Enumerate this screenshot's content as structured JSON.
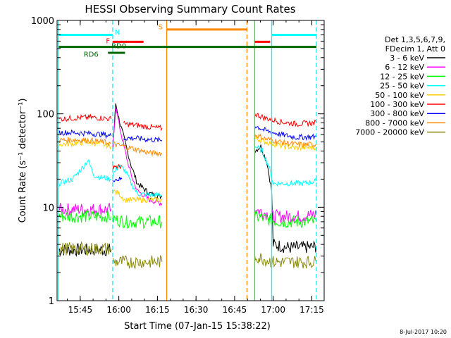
{
  "chart_data": {
    "type": "line",
    "title": "HESSI Observing Summary Count Rates",
    "xlabel": "Start Time (07-Jan-15 15:38:22)",
    "ylabel": "Count Rate (s⁻¹ detector⁻¹)",
    "ylog": true,
    "xlim_min": [
      15.6,
      17.33
    ],
    "ylim": [
      1,
      1000
    ],
    "xticks": [
      {
        "t": 15.75,
        "label": "15:45"
      },
      {
        "t": 16.0,
        "label": "16:00"
      },
      {
        "t": 16.25,
        "label": "16:15"
      },
      {
        "t": 16.5,
        "label": "16:30"
      },
      {
        "t": 16.75,
        "label": "16:45"
      },
      {
        "t": 17.0,
        "label": "17:00"
      },
      {
        "t": 17.25,
        "label": "17:15"
      }
    ],
    "yticks": [
      {
        "v": 1,
        "label": "1"
      },
      {
        "v": 10,
        "label": "10"
      },
      {
        "v": 100,
        "label": "100"
      },
      {
        "v": 1000,
        "label": "1000"
      }
    ],
    "legend": {
      "header": [
        "Det 1,3,5,6,7,9,",
        "FDecim 1, Att 0"
      ],
      "placement": "right"
    },
    "series": [
      {
        "name": "3 - 6 keV",
        "color": "#000000",
        "segments": [
          [
            [
              15.61,
              3.5
            ],
            [
              15.95,
              3.5
            ]
          ],
          [
            [
              15.96,
              40
            ],
            [
              15.98,
              130
            ],
            [
              16.0,
              90
            ],
            [
              16.04,
              50
            ],
            [
              16.08,
              28
            ],
            [
              16.12,
              18
            ],
            [
              16.2,
              14
            ],
            [
              16.28,
              13
            ]
          ],
          [
            [
              16.88,
              40
            ],
            [
              16.92,
              45
            ],
            [
              16.96,
              30
            ],
            [
              16.99,
              15
            ],
            [
              17.0,
              4
            ],
            [
              17.1,
              3.7
            ],
            [
              17.2,
              3.7
            ],
            [
              17.28,
              3.8
            ]
          ]
        ]
      },
      {
        "name": "6 - 12 keV",
        "color": "#ff00ff",
        "segments": [
          [
            [
              15.61,
              9.5
            ],
            [
              15.95,
              9.5
            ]
          ],
          [
            [
              15.96,
              40
            ],
            [
              15.98,
              120
            ],
            [
              16.0,
              80
            ],
            [
              16.04,
              40
            ],
            [
              16.08,
              22
            ],
            [
              16.12,
              15
            ],
            [
              16.2,
              12
            ],
            [
              16.28,
              11
            ]
          ],
          [
            [
              16.88,
              9.5
            ],
            [
              16.92,
              9
            ],
            [
              16.96,
              8.5
            ],
            [
              16.99,
              8
            ],
            [
              17.0,
              8
            ],
            [
              17.2,
              8
            ],
            [
              17.28,
              8.5
            ]
          ]
        ]
      },
      {
        "name": "12 - 25 keV",
        "color": "#00ff00",
        "segments": [
          [
            [
              15.61,
              8
            ],
            [
              15.95,
              8
            ]
          ],
          [
            [
              15.96,
              7.5
            ],
            [
              16.05,
              7
            ],
            [
              16.15,
              7
            ],
            [
              16.28,
              7
            ]
          ],
          [
            [
              16.88,
              8
            ],
            [
              16.95,
              7.5
            ],
            [
              17.05,
              7
            ],
            [
              17.15,
              7
            ],
            [
              17.28,
              7
            ]
          ]
        ]
      },
      {
        "name": "25 - 50 keV",
        "color": "#00ffff",
        "segments": [
          [
            [
              15.61,
              18
            ],
            [
              15.7,
              20
            ],
            [
              15.76,
              26
            ],
            [
              15.8,
              32
            ],
            [
              15.84,
              22
            ],
            [
              15.88,
              21
            ],
            [
              15.95,
              20
            ]
          ],
          [
            [
              15.96,
              22
            ],
            [
              16.0,
              28
            ],
            [
              16.04,
              25
            ],
            [
              16.08,
              18
            ],
            [
              16.12,
              14
            ],
            [
              16.2,
              13.5
            ],
            [
              16.28,
              13.5
            ]
          ],
          [
            [
              16.88,
              45
            ],
            [
              16.93,
              40
            ],
            [
              16.97,
              28
            ],
            [
              17.0,
              18
            ],
            [
              17.1,
              18
            ],
            [
              17.2,
              18
            ],
            [
              17.28,
              19
            ]
          ]
        ]
      },
      {
        "name": "50 - 100 keV",
        "color": "#ffcc00",
        "segments": [
          [
            [
              15.61,
              47
            ],
            [
              15.7,
              48
            ],
            [
              15.8,
              50
            ],
            [
              15.9,
              47
            ],
            [
              15.95,
              45
            ]
          ],
          [
            [
              15.96,
              15
            ],
            [
              16.0,
              14
            ],
            [
              16.04,
              12
            ],
            [
              16.08,
              12
            ],
            [
              16.12,
              12
            ],
            [
              16.2,
              12
            ],
            [
              16.28,
              12
            ]
          ],
          [
            [
              16.88,
              55
            ],
            [
              16.95,
              50
            ],
            [
              17.05,
              46
            ],
            [
              17.15,
              43
            ],
            [
              17.28,
              44
            ]
          ]
        ]
      },
      {
        "name": "100 - 300 keV",
        "color": "#ff0000",
        "segments": [
          [
            [
              15.61,
              88
            ],
            [
              15.7,
              90
            ],
            [
              15.8,
              92
            ],
            [
              15.9,
              90
            ],
            [
              15.95,
              88
            ]
          ],
          [
            [
              15.96,
              28
            ],
            [
              16.0,
              27
            ],
            [
              16.02,
              28
            ]
          ],
          [
            [
              16.03,
              78
            ],
            [
              16.1,
              76
            ],
            [
              16.2,
              72
            ],
            [
              16.28,
              70
            ]
          ],
          [
            [
              16.88,
              100
            ],
            [
              16.95,
              90
            ],
            [
              17.05,
              82
            ],
            [
              17.15,
              78
            ],
            [
              17.28,
              80
            ]
          ]
        ]
      },
      {
        "name": "300 - 800 keV",
        "color": "#0000ff",
        "segments": [
          [
            [
              15.61,
              63
            ],
            [
              15.7,
              63
            ],
            [
              15.8,
              62
            ],
            [
              15.9,
              60
            ],
            [
              15.95,
              58
            ]
          ],
          [
            [
              15.96,
              20
            ],
            [
              16.0,
              20
            ],
            [
              16.02,
              20
            ]
          ],
          [
            [
              16.03,
              55
            ],
            [
              16.1,
              55
            ],
            [
              16.2,
              53
            ],
            [
              16.28,
              52
            ]
          ],
          [
            [
              16.88,
              75
            ],
            [
              16.95,
              66
            ],
            [
              17.05,
              60
            ],
            [
              17.15,
              56
            ],
            [
              17.28,
              57
            ]
          ]
        ]
      },
      {
        "name": "800 - 7000 keV",
        "color": "#ff8800",
        "segments": [
          [
            [
              15.61,
              52
            ],
            [
              15.7,
              53
            ],
            [
              15.8,
              52
            ],
            [
              15.9,
              50
            ],
            [
              15.95,
              48
            ]
          ],
          [
            [
              15.96,
              48
            ],
            [
              16.0,
              46
            ],
            [
              16.08,
              43
            ],
            [
              16.15,
              40
            ],
            [
              16.2,
              38
            ],
            [
              16.28,
              38
            ]
          ],
          [
            [
              16.88,
              60
            ],
            [
              16.95,
              54
            ],
            [
              17.05,
              50
            ],
            [
              17.15,
              47
            ],
            [
              17.28,
              47
            ]
          ]
        ]
      },
      {
        "name": "7000 - 20000 keV",
        "color": "#888800",
        "segments": [
          [
            [
              15.61,
              3.6
            ],
            [
              15.95,
              3.6
            ]
          ],
          [
            [
              15.96,
              2.6
            ],
            [
              16.1,
              2.6
            ],
            [
              16.28,
              2.6
            ]
          ],
          [
            [
              16.88,
              3
            ],
            [
              17.0,
              2.6
            ],
            [
              17.15,
              2.6
            ],
            [
              17.28,
              2.6
            ]
          ]
        ]
      }
    ],
    "vlines": [
      {
        "t": 15.61,
        "color": "#00ffff",
        "style": "solid"
      },
      {
        "t": 15.96,
        "color": "#00ffff",
        "style": "dash"
      },
      {
        "t": 16.31,
        "color": "#ff8800",
        "style": "solid"
      },
      {
        "t": 16.83,
        "color": "#ff8800",
        "style": "dash"
      },
      {
        "t": 16.88,
        "color": "#00ff00",
        "style": "solid"
      },
      {
        "t": 16.99,
        "color": "#00ffff",
        "style": "solid"
      },
      {
        "t": 17.28,
        "color": "#00ffff",
        "style": "dash"
      }
    ],
    "flag_bars": [
      {
        "label": "N",
        "color": "#00ffff",
        "v": 700,
        "ranges": [
          [
            15.61,
            15.96
          ],
          [
            16.99,
            17.28
          ]
        ],
        "label_t": 15.99,
        "label_v": 760
      },
      {
        "label": "S",
        "color": "#ff8800",
        "v": 800,
        "ranges": [
          [
            16.31,
            16.83
          ]
        ],
        "label_t": 16.27,
        "label_v": 860
      },
      {
        "label": "F",
        "color": "#ff0000",
        "v": 590,
        "ranges": [
          [
            15.96,
            16.16
          ],
          [
            16.88,
            16.98
          ]
        ],
        "label_t": 15.93,
        "label_v": 610
      },
      {
        "label": "RD0",
        "color": "#006600",
        "v": 520,
        "ranges": [
          [
            15.61,
            17.28
          ]
        ],
        "label_t": 16.0,
        "label_v": 540
      },
      {
        "label": "RD6",
        "color": "#006600",
        "v": 450,
        "ranges": [
          [
            15.93,
            16.04
          ]
        ],
        "label_t": 15.82,
        "label_v": 440
      }
    ],
    "timestamp": "8-Jul-2017 10:20"
  }
}
